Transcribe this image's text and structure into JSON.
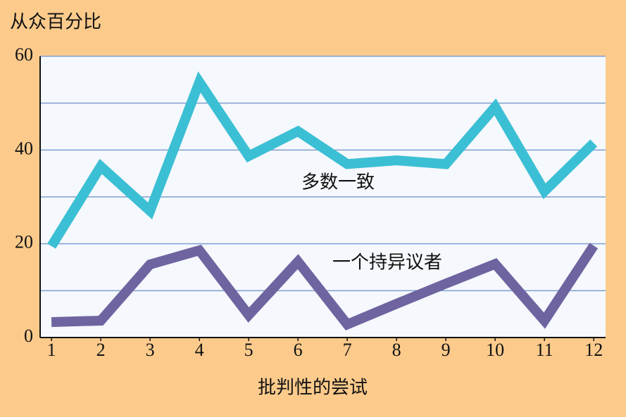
{
  "chart_data": {
    "type": "line",
    "y_axis_label": "从众百分比",
    "x_axis_label": "批判性的尝试",
    "x": [
      1,
      2,
      3,
      4,
      5,
      6,
      7,
      8,
      9,
      10,
      11,
      12
    ],
    "series": [
      {
        "name": "多数一致",
        "color": "#3bbfd4",
        "values": [
          19.5,
          36.5,
          27,
          54.5,
          38.7,
          44,
          37,
          37.8,
          37,
          49.2,
          31.2,
          41.5
        ]
      },
      {
        "name": "一个持异议者",
        "color": "#6e64a0",
        "values": [
          3.3,
          3.6,
          15.6,
          18.6,
          4.8,
          16.2,
          2.8,
          7.2,
          11.5,
          15.7,
          3.6,
          19.6
        ]
      }
    ],
    "xlim": [
      0.77,
      12.24
    ],
    "xticks": [
      1,
      2,
      3,
      4,
      5,
      6,
      7,
      8,
      9,
      10,
      11,
      12
    ],
    "ylim": [
      0,
      60
    ],
    "yticks": [
      0,
      20,
      40,
      60
    ],
    "minor_grid": [
      10,
      30,
      50
    ],
    "grid": true
  }
}
